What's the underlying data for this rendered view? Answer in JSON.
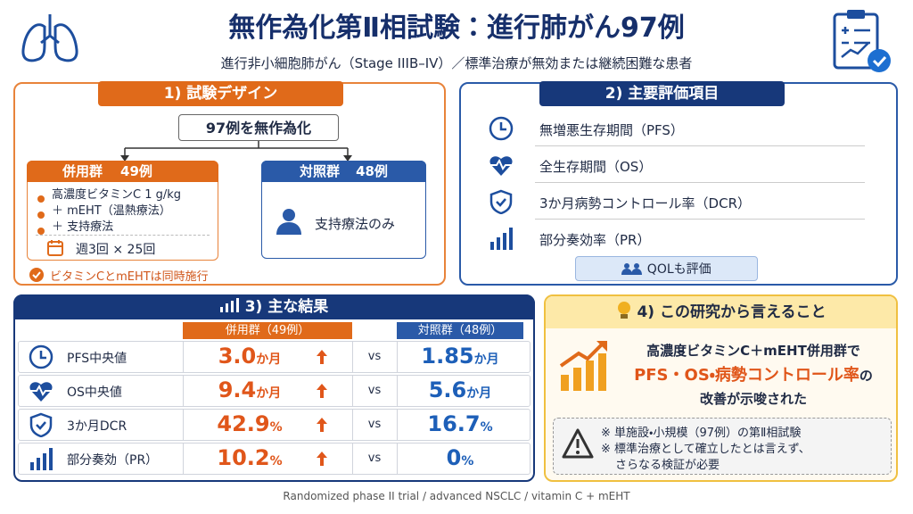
{
  "header": {
    "title": "無作為化第Ⅱ相試験：進行肺がん97例",
    "subtitle": "進行非小細胞肺がん（Stage IIIB–IV）／標準治療が無効または継続困難な患者"
  },
  "design": {
    "title": "1) 試験デザイン",
    "total": "97例を無作為化",
    "combo": {
      "name": "併用群",
      "n": "49例",
      "items": [
        "高濃度ビタミンC 1 g/kg",
        "＋ mEHT（温熱療法）",
        "＋ 支持療法"
      ],
      "schedule": "週3回 × 25回"
    },
    "control": {
      "name": "対照群",
      "n": "48例",
      "item": "支持療法のみ"
    },
    "note": "ビタミンCとmEHTは同時施行"
  },
  "endpoints": {
    "title": "2) 主要評価項目",
    "items": [
      "無増悪生存期間（PFS）",
      "全生存期間（OS）",
      "3か月病勢コントロール率（DCR）",
      "部分奏効率（PR）"
    ],
    "extra": "QOLも評価"
  },
  "results": {
    "title": "3) 主な結果",
    "combo_header": "併用群（49例）",
    "control_header": "対照群（48例）",
    "vs": "vs",
    "rows": [
      {
        "label": "PFS中央値",
        "combo": "3.0",
        "control": "1.85",
        "unit": "か月"
      },
      {
        "label": "OS中央値",
        "combo": "9.4",
        "control": "5.6",
        "unit": "か月"
      },
      {
        "label": "3か月DCR",
        "combo": "42.9",
        "control": "16.7",
        "unit": "%"
      },
      {
        "label": "部分奏効（PR）",
        "combo": "10.2",
        "control": "0",
        "unit": "%"
      }
    ]
  },
  "conclusion": {
    "title": "4) この研究から言えること",
    "line1": "高濃度ビタミンC＋mEHT併用群で",
    "highlight": "PFS・OS・病勢コントロール率",
    "particle": "の",
    "line3": "改善が示唆された",
    "caveats": [
      "※ 単施設・小規模（97例）の第Ⅱ相試験",
      "※ 標準治療として確立したとは言えず、",
      "さらなる検証が必要"
    ]
  },
  "footer": "Randomized phase II trial / advanced NSCLC / vitamin C + mEHT"
}
